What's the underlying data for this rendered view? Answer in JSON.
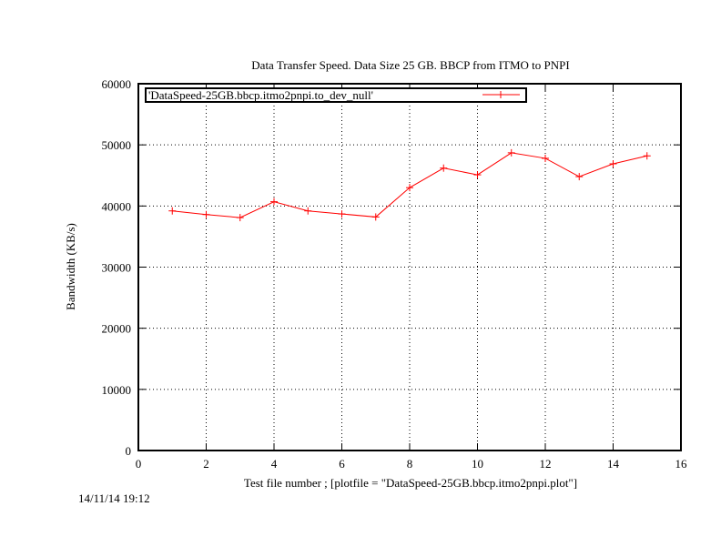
{
  "chart_data": {
    "type": "line",
    "title": "Data Transfer Speed. Data Size 25 GB. BBCP from ITMO to PNPI",
    "xlabel": "Test file number ; [plotfile = \"DataSpeed-25GB.bbcp.itmo2pnpi.plot\"]",
    "ylabel": "Bandwidth (KB/s)",
    "xlim": [
      0,
      16
    ],
    "ylim": [
      0,
      60000
    ],
    "xticks": [
      0,
      2,
      4,
      6,
      8,
      10,
      12,
      14,
      16
    ],
    "yticks": [
      0,
      10000,
      20000,
      30000,
      40000,
      50000,
      60000
    ],
    "grid": true,
    "legend_position": "top-left",
    "series": [
      {
        "name": "'DataSpeed-25GB.bbcp.itmo2pnpi.to_dev_null'",
        "color": "#ff0000",
        "marker": "plus",
        "x": [
          1,
          2,
          3,
          4,
          5,
          6,
          7,
          8,
          9,
          10,
          11,
          12,
          13,
          14,
          15
        ],
        "y": [
          39200,
          38600,
          38100,
          40700,
          39200,
          38700,
          38200,
          43000,
          46200,
          45100,
          48700,
          47800,
          44800,
          46900,
          48200
        ]
      }
    ]
  },
  "timestamp": "14/11/14 19:12"
}
